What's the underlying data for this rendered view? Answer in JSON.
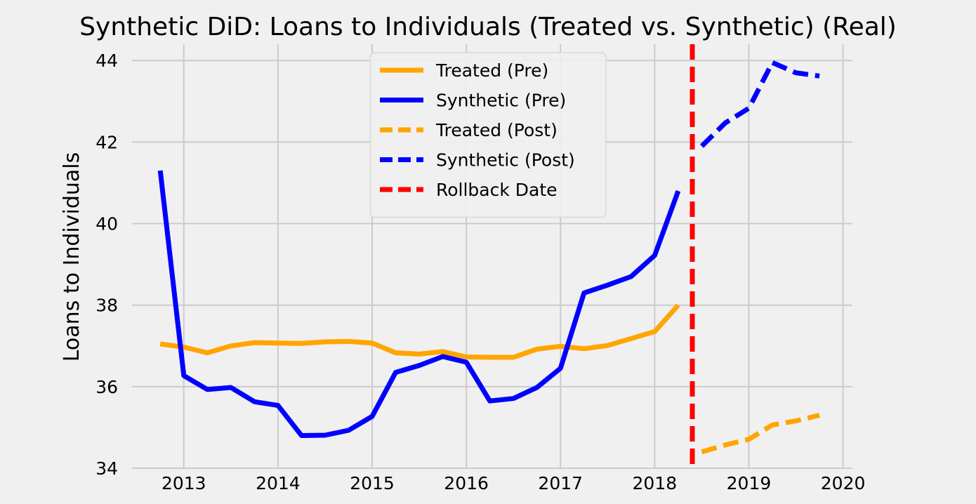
{
  "chart_data": {
    "type": "line",
    "title": "Synthetic DiD: Loans to Individuals (Treated vs. Synthetic) (Real)",
    "xlabel": "",
    "ylabel": "Loans to Individuals",
    "xlim": [
      2012.45,
      2020.1
    ],
    "ylim": [
      34,
      44.4
    ],
    "x_ticks": [
      2013,
      2014,
      2015,
      2016,
      2017,
      2018,
      2019,
      2020
    ],
    "x_tick_labels": [
      "2013",
      "2014",
      "2015",
      "2016",
      "2017",
      "2018",
      "2019",
      "2020"
    ],
    "y_ticks": [
      34,
      36,
      38,
      40,
      42,
      44
    ],
    "y_tick_labels": [
      "34",
      "36",
      "38",
      "40",
      "42",
      "44"
    ],
    "grid": true,
    "legend_position": "top-center",
    "series": [
      {
        "name": "Treated (Pre)",
        "color": "#FFA500",
        "style": "solid",
        "x": [
          2012.75,
          2013.0,
          2013.25,
          2013.5,
          2013.75,
          2014.0,
          2014.25,
          2014.5,
          2014.75,
          2015.0,
          2015.25,
          2015.5,
          2015.75,
          2016.0,
          2016.25,
          2016.5,
          2016.75,
          2017.0,
          2017.25,
          2017.5,
          2017.75,
          2018.0,
          2018.25
        ],
        "y": [
          37.05,
          36.97,
          36.83,
          37.0,
          37.08,
          37.07,
          37.06,
          37.1,
          37.11,
          37.07,
          36.83,
          36.8,
          36.86,
          36.73,
          36.72,
          36.72,
          36.92,
          36.99,
          36.93,
          37.01,
          37.18,
          37.35,
          38.0
        ]
      },
      {
        "name": "Synthetic (Pre)",
        "color": "#0000FF",
        "style": "solid",
        "x": [
          2012.75,
          2013.0,
          2013.25,
          2013.5,
          2013.75,
          2014.0,
          2014.25,
          2014.5,
          2014.75,
          2015.0,
          2015.25,
          2015.5,
          2015.75,
          2016.0,
          2016.25,
          2016.5,
          2016.75,
          2017.0,
          2017.25,
          2017.5,
          2017.75,
          2018.0,
          2018.25
        ],
        "y": [
          41.3,
          36.27,
          35.93,
          35.98,
          35.63,
          35.54,
          34.8,
          34.81,
          34.93,
          35.27,
          36.35,
          36.52,
          36.74,
          36.6,
          35.65,
          35.71,
          35.98,
          36.45,
          38.3,
          38.49,
          38.7,
          39.22,
          40.8
        ]
      },
      {
        "name": "Treated (Post)",
        "color": "#FFA500",
        "style": "dashed",
        "x": [
          2018.5,
          2018.75,
          2019.0,
          2019.25,
          2019.5,
          2019.75
        ],
        "y": [
          34.4,
          34.57,
          34.71,
          35.06,
          35.16,
          35.3
        ]
      },
      {
        "name": "Synthetic (Post)",
        "color": "#0000FF",
        "style": "dashed",
        "x": [
          2018.5,
          2018.75,
          2019.0,
          2019.25,
          2019.5,
          2019.75
        ],
        "y": [
          41.9,
          42.47,
          42.83,
          43.95,
          43.7,
          43.62
        ]
      }
    ],
    "vlines": [
      {
        "name": "Rollback Date",
        "x": 2018.4,
        "color": "#FF0000",
        "style": "dashed"
      }
    ]
  }
}
